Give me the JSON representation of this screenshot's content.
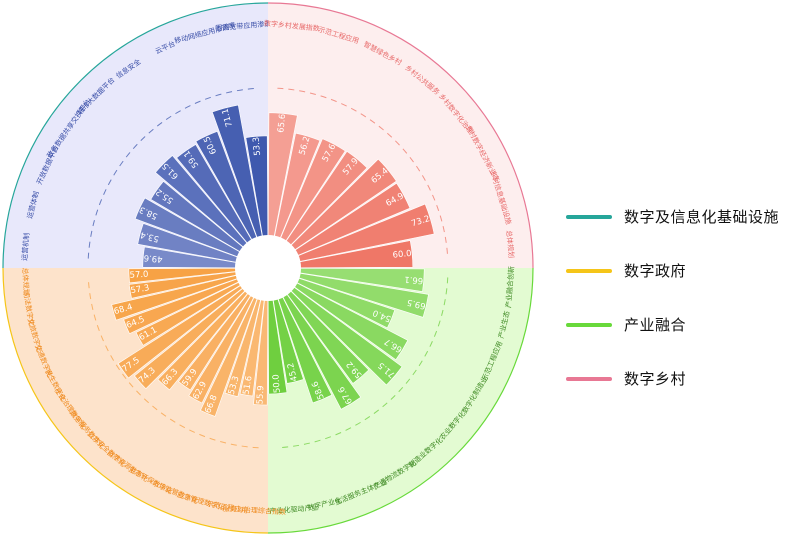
{
  "legend": [
    {
      "label": "数字及信息化基础设施",
      "color": "#26a69a"
    },
    {
      "label": "数字政府",
      "color": "#f5c518"
    },
    {
      "label": "产业融合",
      "color": "#68d93a"
    },
    {
      "label": "数字乡村",
      "color": "#e87894"
    }
  ],
  "chart_data": {
    "type": "polar-bar",
    "value_range": [
      0,
      100
    ],
    "groups": [
      {
        "name": "数字及信息化基础设施",
        "bg": "#e8e8fb",
        "ring": "#26a69a",
        "bar": "#3f59ae",
        "label_color": "#3a4fa8",
        "categories": [
          {
            "label": "运营机制",
            "value": 49.6
          },
          {
            "label": "运营体制",
            "value": 53.4
          },
          {
            "label": "开放数据平台",
            "value": 58.3
          },
          {
            "label": "政务数据共享交换平台",
            "value": 55.2
          },
          {
            "label": "城市大数据平台",
            "value": 61.5
          },
          {
            "label": "信息安全",
            "value": 59.1
          },
          {
            "label": "云平台",
            "value": 60.5
          },
          {
            "label": "移动网络应用渗透率",
            "value": 71.1
          },
          {
            "label": "固网宽带应用渗透率",
            "value": 53.3
          }
        ]
      },
      {
        "name": "数字乡村",
        "bg": "#fdeeee",
        "ring": "#e87894",
        "bar": "#ef7767",
        "label_color": "#e86a6a",
        "categories": [
          {
            "label": "数字乡村发展指数",
            "value": 65.6
          },
          {
            "label": "示范工程应用",
            "value": 56.2
          },
          {
            "label": "智慧绿色乡村",
            "value": 57.6
          },
          {
            "label": "乡村公共服务",
            "value": 57.9
          },
          {
            "label": "乡村数字化治理",
            "value": 65.4
          },
          {
            "label": "乡村数字经济新业态",
            "value": 64.9
          },
          {
            "label": "乡村信息基础设施",
            "value": 73.2
          },
          {
            "label": "总体规划",
            "value": 60.0
          }
        ]
      },
      {
        "name": "产业融合",
        "bg": "#e3fbd2",
        "ring": "#68d93a",
        "bar": "#6fcf3f",
        "label_color": "#3f8a24",
        "categories": [
          {
            "label": "产业融合创新",
            "value": 66.1
          },
          {
            "label": "产业生态",
            "value": 69.5
          },
          {
            "label": "示范工程应用",
            "value": 54.0
          },
          {
            "label": "数字化制造业",
            "value": 66.7
          },
          {
            "label": "农业数字化",
            "value": 71.5
          },
          {
            "label": "制造业数字化",
            "value": 59.2
          },
          {
            "label": "交通物流数字化",
            "value": 67.6
          },
          {
            "label": "生活服务主体产业",
            "value": 58.6
          },
          {
            "label": "数字产业化",
            "value": 45.2
          },
          {
            "label": "数字产业化驱动产业",
            "value": 50.0
          }
        ]
      },
      {
        "name": "数字政府",
        "bg": "#fde3cb",
        "ring": "#f5c518",
        "bar": "#f7a245",
        "label_color": "#ef8a1e",
        "categories": [
          {
            "label": "服务与治理综合指数",
            "value": 55.9
          },
          {
            "label": "示范工程应用",
            "value": 51.6
          },
          {
            "label": "应急管理数字化",
            "value": 53.3
          },
          {
            "label": "市场监管数字化",
            "value": 66.8
          },
          {
            "label": "生态环保数字化",
            "value": 62.9
          },
          {
            "label": "自然资源数字化",
            "value": 59.9
          },
          {
            "label": "公共安全数字化",
            "value": 66.3
          },
          {
            "label": "政务服务数字化",
            "value": 74.3
          },
          {
            "label": "社会治理数字化",
            "value": 77.5
          },
          {
            "label": "民生数字化",
            "value": 61.1
          },
          {
            "label": "交通数字化",
            "value": 64.5
          },
          {
            "label": "文旅数字化",
            "value": 68.4
          },
          {
            "label": "司法数字化",
            "value": 57.3
          },
          {
            "label": "总体规划",
            "value": 57.0
          }
        ]
      }
    ]
  }
}
